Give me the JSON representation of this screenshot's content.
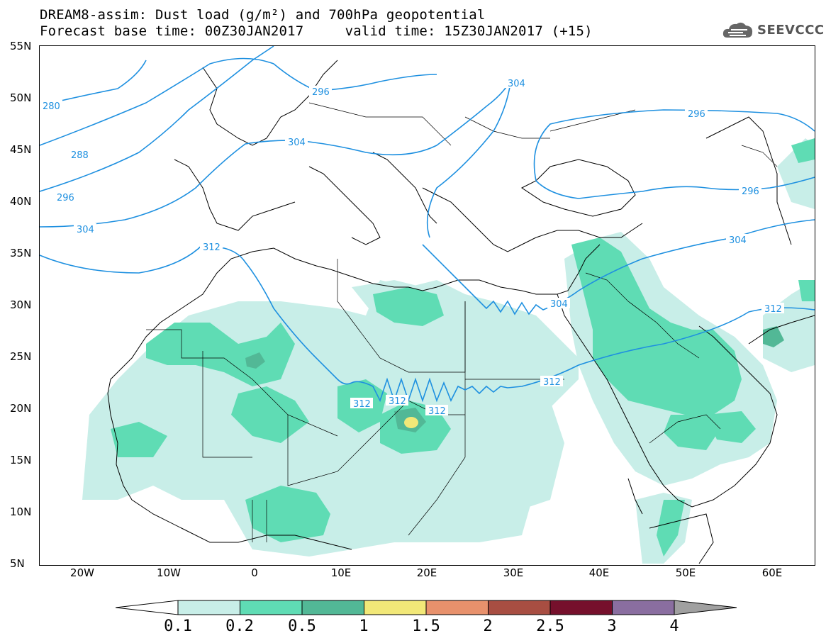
{
  "header": {
    "title_line1": "DREAM8-assim: Dust load (g/m²) and 700hPa geopotential",
    "title_line2": "Forecast base time: 00Z30JAN2017     valid time: 15Z30JAN2017 (+15)"
  },
  "logo": {
    "text": "SEEVCCC",
    "icon": "cloud-icon"
  },
  "axes": {
    "lat_labels": [
      "55N",
      "50N",
      "45N",
      "40N",
      "35N",
      "30N",
      "25N",
      "20N",
      "15N",
      "10N",
      "5N"
    ],
    "lon_labels": [
      "20W",
      "10W",
      "0",
      "10E",
      "20E",
      "30E",
      "40E",
      "50E",
      "60E"
    ]
  },
  "contours": {
    "labels": [
      "280",
      "288",
      "296",
      "304",
      "312",
      "296",
      "304",
      "296",
      "304",
      "312",
      "304",
      "312",
      "312",
      "312",
      "312",
      "296"
    ],
    "color": "#1e90e0"
  },
  "colorbar": {
    "labels": [
      "0.1",
      "0.2",
      "0.5",
      "1",
      "1.5",
      "2",
      "2.5",
      "3",
      "4"
    ],
    "colors": [
      "#c8eee8",
      "#5fdcb4",
      "#52b896",
      "#f2e878",
      "#e8916c",
      "#a84e42",
      "#76102c",
      "#8a6ea0",
      "#a0a0a0"
    ]
  },
  "dust_colors": {
    "level1": "#c8eee8",
    "level2": "#5fdcb4",
    "level3": "#52b896",
    "level4": "#f2e878"
  }
}
